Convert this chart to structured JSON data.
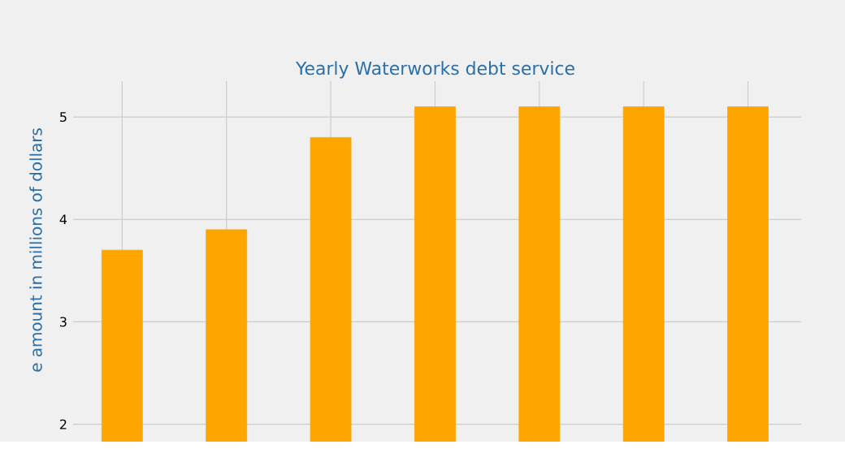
{
  "chart_data": {
    "type": "bar",
    "title": "Yearly Waterworks debt service",
    "ylabel": "e amount in millions of dollars",
    "categories": [
      null,
      null,
      null,
      null,
      null,
      null,
      null
    ],
    "values": [
      3.7,
      3.9,
      4.8,
      5.1,
      5.1,
      5.1,
      5.1
    ],
    "color": "#ffa500",
    "ylim": [
      1.83,
      5.35
    ],
    "yticks": [
      2,
      3,
      4,
      5
    ],
    "grid": true,
    "tick_labels": "y"
  }
}
